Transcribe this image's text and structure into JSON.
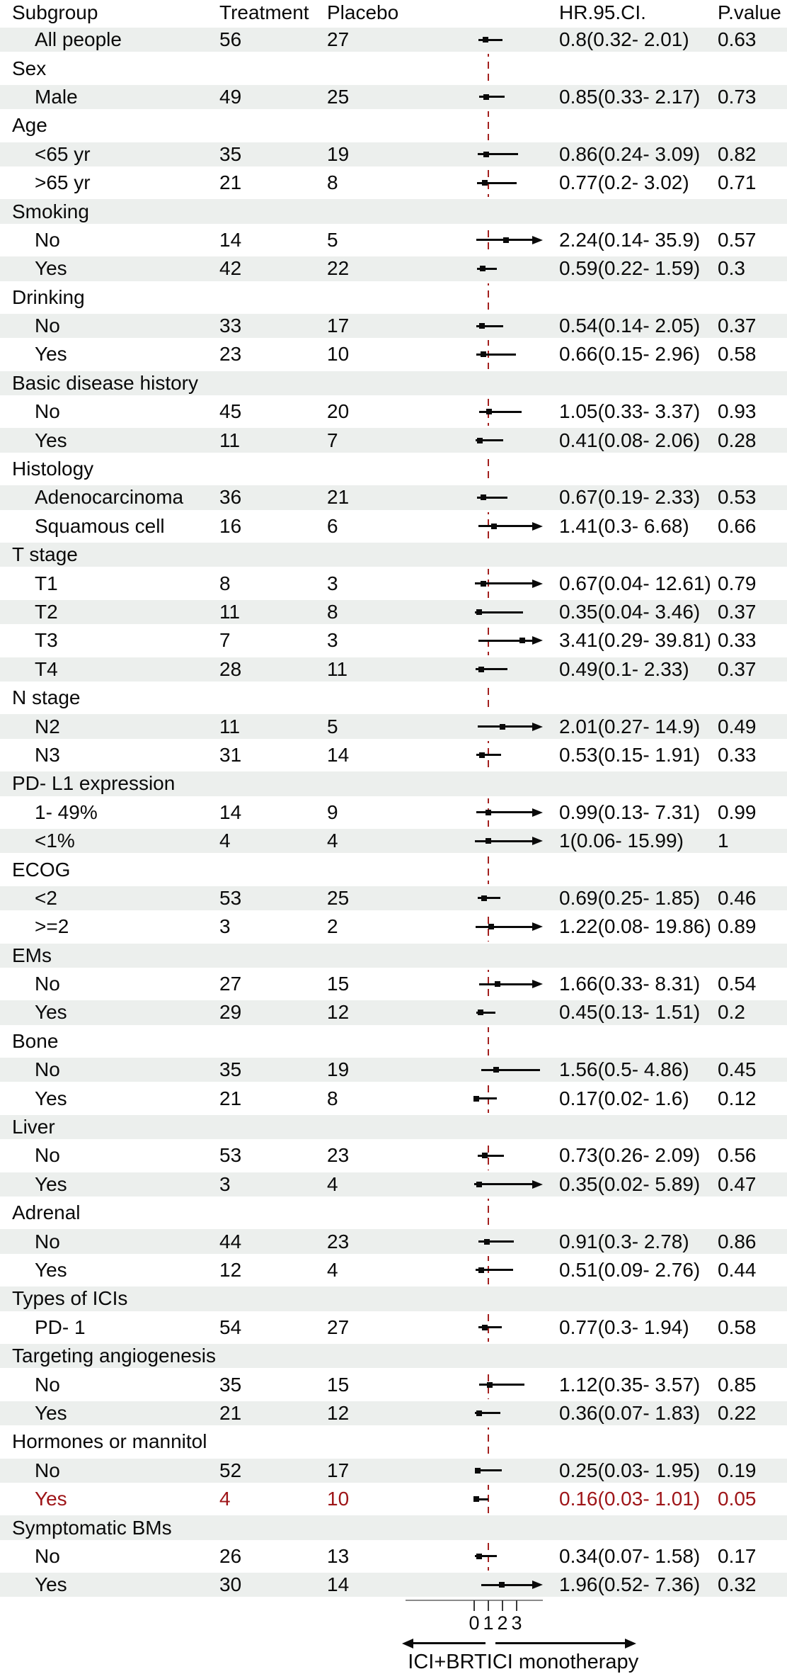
{
  "header": {
    "subgroup": "Subgroup",
    "treatment": "Treatment",
    "placebo": "Placebo",
    "hr_ci": "HR.95.CI.",
    "p_value": "P.value"
  },
  "axis": {
    "ticks": [
      "0",
      "1",
      "2",
      "3"
    ],
    "left_arrow_label": "ICI+BRT",
    "right_arrow_label": "ICI monotherapy"
  },
  "colors": {
    "highlight_red": "#9E1417",
    "reference_line_red": "#A3201E",
    "row_shade": "#ecefed",
    "text": "#0a0a0a"
  },
  "chart_data": {
    "type": "forest",
    "x_ticks": [
      0,
      1,
      2,
      3
    ],
    "reference_line": 1,
    "clip_upper_at": 4.9,
    "left_direction_label": "ICI+BRT",
    "right_direction_label": "ICI monotherapy",
    "rows": [
      {
        "type": "item",
        "label": "All people",
        "treatment": 56,
        "placebo": 27,
        "hr": 0.8,
        "lo": 0.32,
        "hi": 2.01,
        "hr_text": "0.8(0.32- 2.01)",
        "p": "0.63",
        "arrow": false,
        "red": false
      },
      {
        "type": "group",
        "label": "Sex"
      },
      {
        "type": "item",
        "label": "Male",
        "treatment": 49,
        "placebo": 25,
        "hr": 0.85,
        "lo": 0.33,
        "hi": 2.17,
        "hr_text": "0.85(0.33- 2.17)",
        "p": "0.73",
        "arrow": false,
        "red": false
      },
      {
        "type": "group",
        "label": "Age"
      },
      {
        "type": "item",
        "label": "<65 yr",
        "treatment": 35,
        "placebo": 19,
        "hr": 0.86,
        "lo": 0.24,
        "hi": 3.09,
        "hr_text": "0.86(0.24- 3.09)",
        "p": "0.82",
        "arrow": false,
        "red": false
      },
      {
        "type": "item",
        "label": ">65 yr",
        "treatment": 21,
        "placebo": 8,
        "hr": 0.77,
        "lo": 0.2,
        "hi": 3.02,
        "hr_text": "0.77(0.2- 3.02)",
        "p": "0.71",
        "arrow": false,
        "red": false
      },
      {
        "type": "group",
        "label": "Smoking"
      },
      {
        "type": "item",
        "label": "No",
        "treatment": 14,
        "placebo": 5,
        "hr": 2.24,
        "lo": 0.14,
        "hi": 35.9,
        "hr_text": "2.24(0.14- 35.9)",
        "p": "0.57",
        "arrow": true,
        "red": false
      },
      {
        "type": "item",
        "label": "Yes",
        "treatment": 42,
        "placebo": 22,
        "hr": 0.59,
        "lo": 0.22,
        "hi": 1.59,
        "hr_text": "0.59(0.22- 1.59)",
        "p": "0.3",
        "arrow": false,
        "red": false
      },
      {
        "type": "group",
        "label": "Drinking"
      },
      {
        "type": "item",
        "label": "No",
        "treatment": 33,
        "placebo": 17,
        "hr": 0.54,
        "lo": 0.14,
        "hi": 2.05,
        "hr_text": "0.54(0.14- 2.05)",
        "p": "0.37",
        "arrow": false,
        "red": false
      },
      {
        "type": "item",
        "label": "Yes",
        "treatment": 23,
        "placebo": 10,
        "hr": 0.66,
        "lo": 0.15,
        "hi": 2.96,
        "hr_text": "0.66(0.15- 2.96)",
        "p": "0.58",
        "arrow": false,
        "red": false
      },
      {
        "type": "group",
        "label": "Basic disease history"
      },
      {
        "type": "item",
        "label": "No",
        "treatment": 45,
        "placebo": 20,
        "hr": 1.05,
        "lo": 0.33,
        "hi": 3.37,
        "hr_text": "1.05(0.33- 3.37)",
        "p": "0.93",
        "arrow": false,
        "red": false
      },
      {
        "type": "item",
        "label": "Yes",
        "treatment": 11,
        "placebo": 7,
        "hr": 0.41,
        "lo": 0.08,
        "hi": 2.06,
        "hr_text": "0.41(0.08- 2.06)",
        "p": "0.28",
        "arrow": false,
        "red": false
      },
      {
        "type": "group",
        "label": "Histology"
      },
      {
        "type": "item",
        "label": "Adenocarcinoma",
        "treatment": 36,
        "placebo": 21,
        "hr": 0.67,
        "lo": 0.19,
        "hi": 2.33,
        "hr_text": "0.67(0.19- 2.33)",
        "p": "0.53",
        "arrow": false,
        "red": false
      },
      {
        "type": "item",
        "label": "Squamous cell",
        "treatment": 16,
        "placebo": 6,
        "hr": 1.41,
        "lo": 0.3,
        "hi": 6.68,
        "hr_text": "1.41(0.3- 6.68)",
        "p": "0.66",
        "arrow": true,
        "red": false
      },
      {
        "type": "group",
        "label": "T stage"
      },
      {
        "type": "item",
        "label": "T1",
        "treatment": 8,
        "placebo": 3,
        "hr": 0.67,
        "lo": 0.04,
        "hi": 12.61,
        "hr_text": "0.67(0.04- 12.61)",
        "p": "0.79",
        "arrow": true,
        "red": false
      },
      {
        "type": "item",
        "label": "T2",
        "treatment": 11,
        "placebo": 8,
        "hr": 0.35,
        "lo": 0.04,
        "hi": 3.46,
        "hr_text": "0.35(0.04- 3.46)",
        "p": "0.37",
        "arrow": false,
        "red": false
      },
      {
        "type": "item",
        "label": "T3",
        "treatment": 7,
        "placebo": 3,
        "hr": 3.41,
        "lo": 0.29,
        "hi": 39.81,
        "hr_text": "3.41(0.29- 39.81)",
        "p": "0.33",
        "arrow": true,
        "red": false
      },
      {
        "type": "item",
        "label": "T4",
        "treatment": 28,
        "placebo": 11,
        "hr": 0.49,
        "lo": 0.1,
        "hi": 2.33,
        "hr_text": "0.49(0.1- 2.33)",
        "p": "0.37",
        "arrow": false,
        "red": false
      },
      {
        "type": "group",
        "label": "N stage"
      },
      {
        "type": "item",
        "label": "N2",
        "treatment": 11,
        "placebo": 5,
        "hr": 2.01,
        "lo": 0.27,
        "hi": 14.9,
        "hr_text": "2.01(0.27- 14.9)",
        "p": "0.49",
        "arrow": true,
        "red": false
      },
      {
        "type": "item",
        "label": "N3",
        "treatment": 31,
        "placebo": 14,
        "hr": 0.53,
        "lo": 0.15,
        "hi": 1.91,
        "hr_text": "0.53(0.15- 1.91)",
        "p": "0.33",
        "arrow": false,
        "red": false
      },
      {
        "type": "group",
        "label": "PD- L1 expression"
      },
      {
        "type": "item",
        "label": "1- 49%",
        "treatment": 14,
        "placebo": 9,
        "hr": 0.99,
        "lo": 0.13,
        "hi": 7.31,
        "hr_text": "0.99(0.13- 7.31)",
        "p": "0.99",
        "arrow": true,
        "red": false
      },
      {
        "type": "item",
        "label": "<1%",
        "treatment": 4,
        "placebo": 4,
        "hr": 1,
        "lo": 0.06,
        "hi": 15.99,
        "hr_text": "1(0.06- 15.99)",
        "p": "1",
        "arrow": true,
        "red": false
      },
      {
        "type": "group",
        "label": "ECOG"
      },
      {
        "type": "item",
        "label": "<2",
        "treatment": 53,
        "placebo": 25,
        "hr": 0.69,
        "lo": 0.25,
        "hi": 1.85,
        "hr_text": "0.69(0.25- 1.85)",
        "p": "0.46",
        "arrow": false,
        "red": false
      },
      {
        "type": "item",
        "label": ">=2",
        "treatment": 3,
        "placebo": 2,
        "hr": 1.22,
        "lo": 0.08,
        "hi": 19.86,
        "hr_text": "1.22(0.08- 19.86)",
        "p": "0.89",
        "arrow": true,
        "red": false
      },
      {
        "type": "group",
        "label": "EMs"
      },
      {
        "type": "item",
        "label": "No",
        "treatment": 27,
        "placebo": 15,
        "hr": 1.66,
        "lo": 0.33,
        "hi": 8.31,
        "hr_text": "1.66(0.33- 8.31)",
        "p": "0.54",
        "arrow": true,
        "red": false
      },
      {
        "type": "item",
        "label": "Yes",
        "treatment": 29,
        "placebo": 12,
        "hr": 0.45,
        "lo": 0.13,
        "hi": 1.51,
        "hr_text": "0.45(0.13- 1.51)",
        "p": "0.2",
        "arrow": false,
        "red": false
      },
      {
        "type": "group",
        "label": "Bone"
      },
      {
        "type": "item",
        "label": "No",
        "treatment": 35,
        "placebo": 19,
        "hr": 1.56,
        "lo": 0.5,
        "hi": 4.86,
        "hr_text": "1.56(0.5- 4.86)",
        "p": "0.45",
        "arrow": false,
        "red": false
      },
      {
        "type": "item",
        "label": "Yes",
        "treatment": 21,
        "placebo": 8,
        "hr": 0.17,
        "lo": 0.02,
        "hi": 1.6,
        "hr_text": "0.17(0.02- 1.6)",
        "p": "0.12",
        "arrow": false,
        "red": false
      },
      {
        "type": "group",
        "label": "Liver"
      },
      {
        "type": "item",
        "label": "No",
        "treatment": 53,
        "placebo": 23,
        "hr": 0.73,
        "lo": 0.26,
        "hi": 2.09,
        "hr_text": "0.73(0.26- 2.09)",
        "p": "0.56",
        "arrow": false,
        "red": false
      },
      {
        "type": "item",
        "label": "Yes",
        "treatment": 3,
        "placebo": 4,
        "hr": 0.35,
        "lo": 0.02,
        "hi": 5.89,
        "hr_text": "0.35(0.02- 5.89)",
        "p": "0.47",
        "arrow": true,
        "red": false
      },
      {
        "type": "group",
        "label": "Adrenal"
      },
      {
        "type": "item",
        "label": "No",
        "treatment": 44,
        "placebo": 23,
        "hr": 0.91,
        "lo": 0.3,
        "hi": 2.78,
        "hr_text": "0.91(0.3- 2.78)",
        "p": "0.86",
        "arrow": false,
        "red": false
      },
      {
        "type": "item",
        "label": "Yes",
        "treatment": 12,
        "placebo": 4,
        "hr": 0.51,
        "lo": 0.09,
        "hi": 2.76,
        "hr_text": "0.51(0.09- 2.76)",
        "p": "0.44",
        "arrow": false,
        "red": false
      },
      {
        "type": "group",
        "label": "Types of ICIs"
      },
      {
        "type": "item",
        "label": "PD- 1",
        "treatment": 54,
        "placebo": 27,
        "hr": 0.77,
        "lo": 0.3,
        "hi": 1.94,
        "hr_text": "0.77(0.3- 1.94)",
        "p": "0.58",
        "arrow": false,
        "red": false
      },
      {
        "type": "group",
        "label": "Targeting angiogenesis"
      },
      {
        "type": "item",
        "label": "No",
        "treatment": 35,
        "placebo": 15,
        "hr": 1.12,
        "lo": 0.35,
        "hi": 3.57,
        "hr_text": "1.12(0.35- 3.57)",
        "p": "0.85",
        "arrow": false,
        "red": false
      },
      {
        "type": "item",
        "label": "Yes",
        "treatment": 21,
        "placebo": 12,
        "hr": 0.36,
        "lo": 0.07,
        "hi": 1.83,
        "hr_text": "0.36(0.07- 1.83)",
        "p": "0.22",
        "arrow": false,
        "red": false
      },
      {
        "type": "group",
        "label": "Hormones or mannitol"
      },
      {
        "type": "item",
        "label": "No",
        "treatment": 52,
        "placebo": 17,
        "hr": 0.25,
        "lo": 0.03,
        "hi": 1.95,
        "hr_text": "0.25(0.03- 1.95)",
        "p": "0.19",
        "arrow": false,
        "red": false
      },
      {
        "type": "item",
        "label": "Yes",
        "treatment": 4,
        "placebo": 10,
        "hr": 0.16,
        "lo": 0.03,
        "hi": 1.01,
        "hr_text": "0.16(0.03- 1.01)",
        "p": "0.05",
        "arrow": false,
        "red": true
      },
      {
        "type": "group",
        "label": "Symptomatic BMs"
      },
      {
        "type": "item",
        "label": "No",
        "treatment": 26,
        "placebo": 13,
        "hr": 0.34,
        "lo": 0.07,
        "hi": 1.58,
        "hr_text": "0.34(0.07- 1.58)",
        "p": "0.17",
        "arrow": false,
        "red": false
      },
      {
        "type": "item",
        "label": "Yes",
        "treatment": 30,
        "placebo": 14,
        "hr": 1.96,
        "lo": 0.52,
        "hi": 7.36,
        "hr_text": "1.96(0.52- 7.36)",
        "p": "0.32",
        "arrow": true,
        "red": false
      }
    ]
  }
}
